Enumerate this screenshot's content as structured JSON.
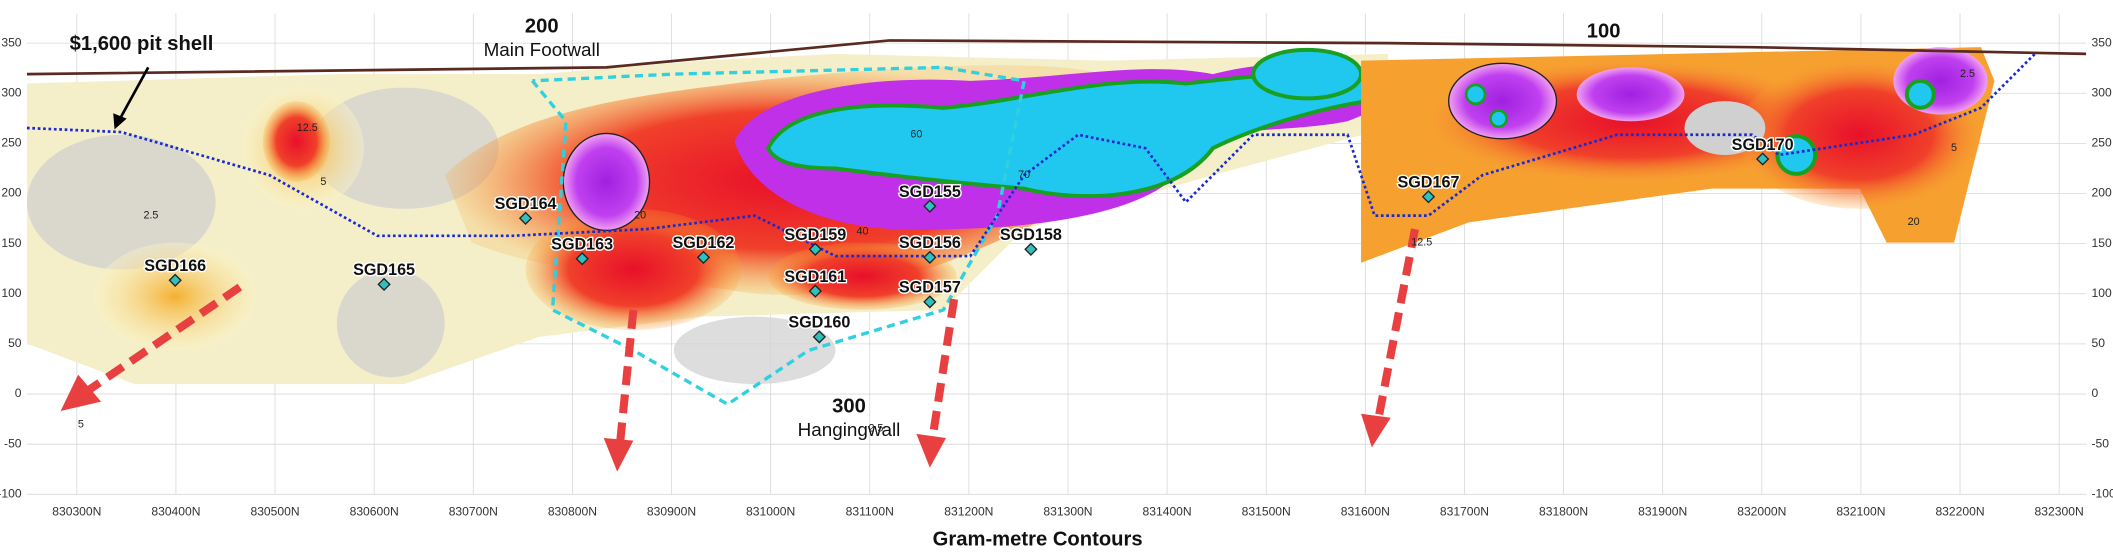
{
  "title": "Gram-metre Contours",
  "annotations": [
    {
      "text": "$1,600 pit shell"
    },
    {
      "text": "200"
    },
    {
      "text": "Main Footwall"
    },
    {
      "text": "100"
    },
    {
      "text": "300"
    },
    {
      "text": "Hangingwall"
    }
  ],
  "drill_holes": [
    "SGD166",
    "SGD165",
    "SGD164",
    "SGD163",
    "SGD162",
    "SGD159",
    "SGD156",
    "SGD158",
    "SGD161",
    "SGD157",
    "SGD160",
    "SGD155",
    "SGD167",
    "SGD170"
  ],
  "contour_labels": [
    "2.5",
    "5",
    "12.5",
    "20",
    "40",
    "60",
    "70",
    "5",
    "2.5",
    "12.5",
    "20",
    "2.5",
    "5"
  ],
  "x_axis": {
    "ticks": [
      "830300N",
      "830400N",
      "830500N",
      "830600N",
      "830700N",
      "830800N",
      "830900N",
      "831000N",
      "831100N",
      "831200N",
      "831300N",
      "831400N",
      "831500N",
      "831600N",
      "831700N",
      "831800N",
      "831900N",
      "832000N",
      "832100N",
      "832200N",
      "832300N"
    ]
  },
  "y_axis": {
    "ticks": [
      350,
      300,
      250,
      200,
      150,
      100,
      50,
      0,
      -50,
      -100
    ]
  }
}
